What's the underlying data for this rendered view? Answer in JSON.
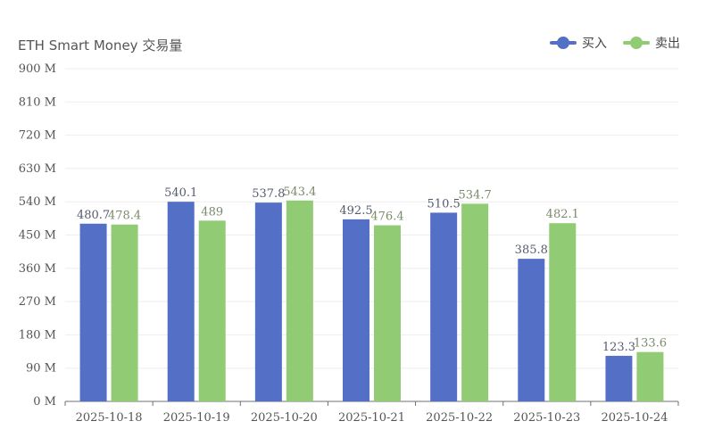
{
  "chart_data": {
    "type": "bar",
    "title": "ETH Smart Money 交易量",
    "categories": [
      "2025-10-18",
      "2025-10-19",
      "2025-10-20",
      "2025-10-21",
      "2025-10-22",
      "2025-10-23",
      "2025-10-24"
    ],
    "series": [
      {
        "name": "买入",
        "color": "#5470c6",
        "values": [
          480.7,
          540.1,
          537.8,
          492.5,
          510.5,
          385.8,
          123.3
        ]
      },
      {
        "name": "卖出",
        "color": "#91cc75",
        "values": [
          478.4,
          489,
          543.4,
          476.4,
          534.7,
          482.1,
          133.6
        ]
      }
    ],
    "ylim": [
      0,
      900
    ],
    "yticks": [
      "0 M",
      "90 M",
      "180 M",
      "270 M",
      "360 M",
      "450 M",
      "540 M",
      "630 M",
      "720 M",
      "810 M",
      "900 M"
    ],
    "data_labels": [
      [
        "480.7",
        "540.1",
        "537.8",
        "492.5",
        "510.5",
        "385.8",
        "123.3"
      ],
      [
        "478.4",
        "489",
        "543.4",
        "476.4",
        "534.7",
        "482.1",
        "133.6"
      ]
    ],
    "legend_position": "top-right",
    "grid": true
  }
}
